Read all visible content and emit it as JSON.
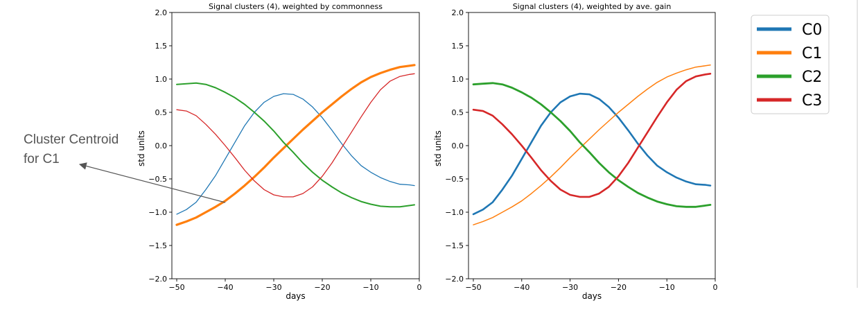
{
  "annotation": {
    "line1": "Cluster Centroid",
    "line2": "for C1"
  },
  "legend": {
    "entries": [
      {
        "name": "C0",
        "color": "#1f77b4"
      },
      {
        "name": "C1",
        "color": "#ff7f0e"
      },
      {
        "name": "C2",
        "color": "#2ca02c"
      },
      {
        "name": "C3",
        "color": "#d62728"
      }
    ]
  },
  "chart_data": [
    {
      "type": "line",
      "title": "Signal clusters (4), weighted by commonness",
      "xlabel": "days",
      "ylabel": "std units",
      "xlim": [
        -51,
        0
      ],
      "ylim": [
        -2.0,
        2.0
      ],
      "xticks": [
        -50,
        -40,
        -30,
        -20,
        -10,
        0
      ],
      "yticks": [
        -2.0,
        -1.5,
        -1.0,
        -0.5,
        0.0,
        0.5,
        1.0,
        1.5,
        2.0
      ],
      "x": [
        -50,
        -48,
        -46,
        -44,
        -42,
        -40,
        -38,
        -36,
        -34,
        -32,
        -30,
        -28,
        -26,
        -24,
        -22,
        -20,
        -18,
        -16,
        -14,
        -12,
        -10,
        -8,
        -6,
        -4,
        -2,
        -1
      ],
      "series": [
        {
          "name": "C0",
          "color": "#1f77b4",
          "width": 1.3,
          "values": [
            -1.03,
            -0.96,
            -0.85,
            -0.66,
            -0.45,
            -0.2,
            0.05,
            0.3,
            0.5,
            0.65,
            0.74,
            0.78,
            0.77,
            0.7,
            0.58,
            0.42,
            0.23,
            0.03,
            -0.15,
            -0.3,
            -0.4,
            -0.48,
            -0.54,
            -0.58,
            -0.59,
            -0.6
          ]
        },
        {
          "name": "C1",
          "color": "#ff7f0e",
          "width": 3.2,
          "values": [
            -1.19,
            -1.14,
            -1.08,
            -1.0,
            -0.92,
            -0.83,
            -0.72,
            -0.6,
            -0.47,
            -0.33,
            -0.18,
            -0.04,
            0.1,
            0.24,
            0.37,
            0.5,
            0.62,
            0.74,
            0.85,
            0.95,
            1.03,
            1.09,
            1.14,
            1.18,
            1.2,
            1.21
          ]
        },
        {
          "name": "C2",
          "color": "#2ca02c",
          "width": 2.0,
          "values": [
            0.92,
            0.93,
            0.94,
            0.92,
            0.87,
            0.8,
            0.72,
            0.62,
            0.5,
            0.37,
            0.22,
            0.05,
            -0.1,
            -0.26,
            -0.4,
            -0.52,
            -0.62,
            -0.71,
            -0.78,
            -0.84,
            -0.88,
            -0.91,
            -0.92,
            -0.92,
            -0.9,
            -0.89
          ]
        },
        {
          "name": "C3",
          "color": "#d62728",
          "width": 1.3,
          "values": [
            0.54,
            0.52,
            0.45,
            0.32,
            0.17,
            0.0,
            -0.18,
            -0.37,
            -0.53,
            -0.66,
            -0.74,
            -0.77,
            -0.77,
            -0.72,
            -0.62,
            -0.46,
            -0.26,
            -0.03,
            0.2,
            0.43,
            0.65,
            0.84,
            0.97,
            1.04,
            1.07,
            1.08
          ]
        }
      ]
    },
    {
      "type": "line",
      "title": "Signal clusters (4), weighted by ave. gain",
      "xlabel": "days",
      "ylabel": "std units",
      "xlim": [
        -51,
        0
      ],
      "ylim": [
        -2.0,
        2.0
      ],
      "xticks": [
        -50,
        -40,
        -30,
        -20,
        -10,
        0
      ],
      "yticks": [
        -2.0,
        -1.5,
        -1.0,
        -0.5,
        0.0,
        0.5,
        1.0,
        1.5,
        2.0
      ],
      "x": [
        -50,
        -48,
        -46,
        -44,
        -42,
        -40,
        -38,
        -36,
        -34,
        -32,
        -30,
        -28,
        -26,
        -24,
        -22,
        -20,
        -18,
        -16,
        -14,
        -12,
        -10,
        -8,
        -6,
        -4,
        -2,
        -1
      ],
      "series": [
        {
          "name": "C0",
          "color": "#1f77b4",
          "width": 2.6,
          "values": [
            -1.03,
            -0.96,
            -0.85,
            -0.66,
            -0.45,
            -0.2,
            0.05,
            0.3,
            0.5,
            0.65,
            0.74,
            0.78,
            0.77,
            0.7,
            0.58,
            0.42,
            0.23,
            0.03,
            -0.15,
            -0.3,
            -0.4,
            -0.48,
            -0.54,
            -0.58,
            -0.59,
            -0.6
          ]
        },
        {
          "name": "C1",
          "color": "#ff7f0e",
          "width": 1.5,
          "values": [
            -1.19,
            -1.14,
            -1.08,
            -1.0,
            -0.92,
            -0.83,
            -0.72,
            -0.6,
            -0.47,
            -0.33,
            -0.18,
            -0.04,
            0.1,
            0.24,
            0.37,
            0.5,
            0.62,
            0.74,
            0.85,
            0.95,
            1.03,
            1.09,
            1.14,
            1.18,
            1.2,
            1.21
          ]
        },
        {
          "name": "C2",
          "color": "#2ca02c",
          "width": 2.8,
          "values": [
            0.92,
            0.93,
            0.94,
            0.92,
            0.87,
            0.8,
            0.72,
            0.62,
            0.5,
            0.37,
            0.22,
            0.05,
            -0.1,
            -0.26,
            -0.4,
            -0.52,
            -0.62,
            -0.71,
            -0.78,
            -0.84,
            -0.88,
            -0.91,
            -0.92,
            -0.92,
            -0.9,
            -0.89
          ]
        },
        {
          "name": "C3",
          "color": "#d62728",
          "width": 2.6,
          "values": [
            0.54,
            0.52,
            0.45,
            0.32,
            0.17,
            0.0,
            -0.18,
            -0.37,
            -0.53,
            -0.66,
            -0.74,
            -0.77,
            -0.77,
            -0.72,
            -0.62,
            -0.46,
            -0.26,
            -0.03,
            0.2,
            0.43,
            0.65,
            0.84,
            0.97,
            1.04,
            1.07,
            1.08
          ]
        }
      ]
    }
  ]
}
